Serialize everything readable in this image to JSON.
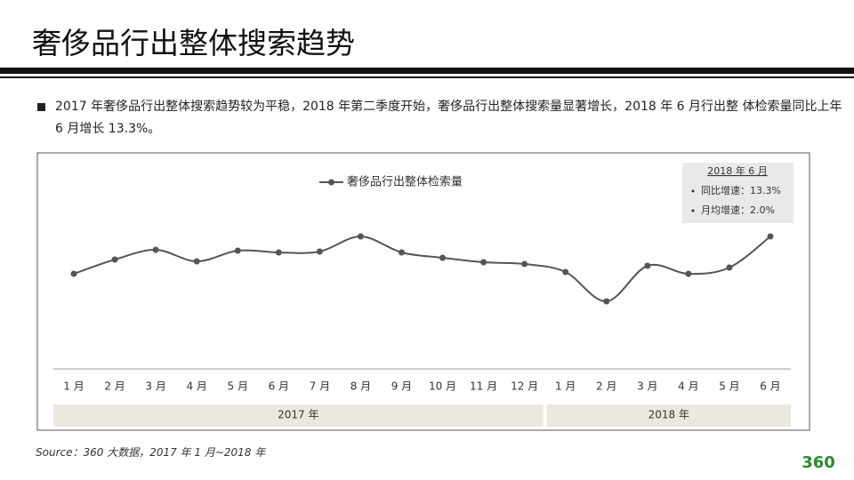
{
  "header": {
    "title": "奢侈品行出整体搜索趋势"
  },
  "bullet": "2017 年奢侈品行出整体搜索趋势较为平稳，2018 年第二季度开始，奢侈品行出整体搜索量显著增长，2018 年 6 月行出整 体检索量同比上年 6 月增长 13.3%。",
  "chart_data": {
    "type": "line",
    "categories": [
      "1 月",
      "2 月",
      "3 月",
      "4 月",
      "5 月",
      "6 月",
      "7 月",
      "8 月",
      "9 月",
      "10 月",
      "11 月",
      "12 月",
      "1 月",
      "2 月",
      "3 月",
      "4 月",
      "5 月",
      "6 月"
    ],
    "groups": [
      "2017 年",
      "2018 年"
    ],
    "series": [
      {
        "name": "奢侈品行出整体检索量",
        "color": "#555555",
        "values": [
          107,
          123,
          134,
          121,
          133,
          131,
          132,
          149,
          131,
          125,
          120,
          118,
          109,
          76,
          116,
          107,
          114,
          149
        ]
      }
    ],
    "ylim": [
      0,
      200
    ],
    "annotation": {
      "title": "2018 年 6 月",
      "items": [
        "同比增速：13.3%",
        "月均增速：2.0%"
      ]
    }
  },
  "source": "Source：360 大数据，2017 年 1 月~2018 年",
  "logo": "360"
}
